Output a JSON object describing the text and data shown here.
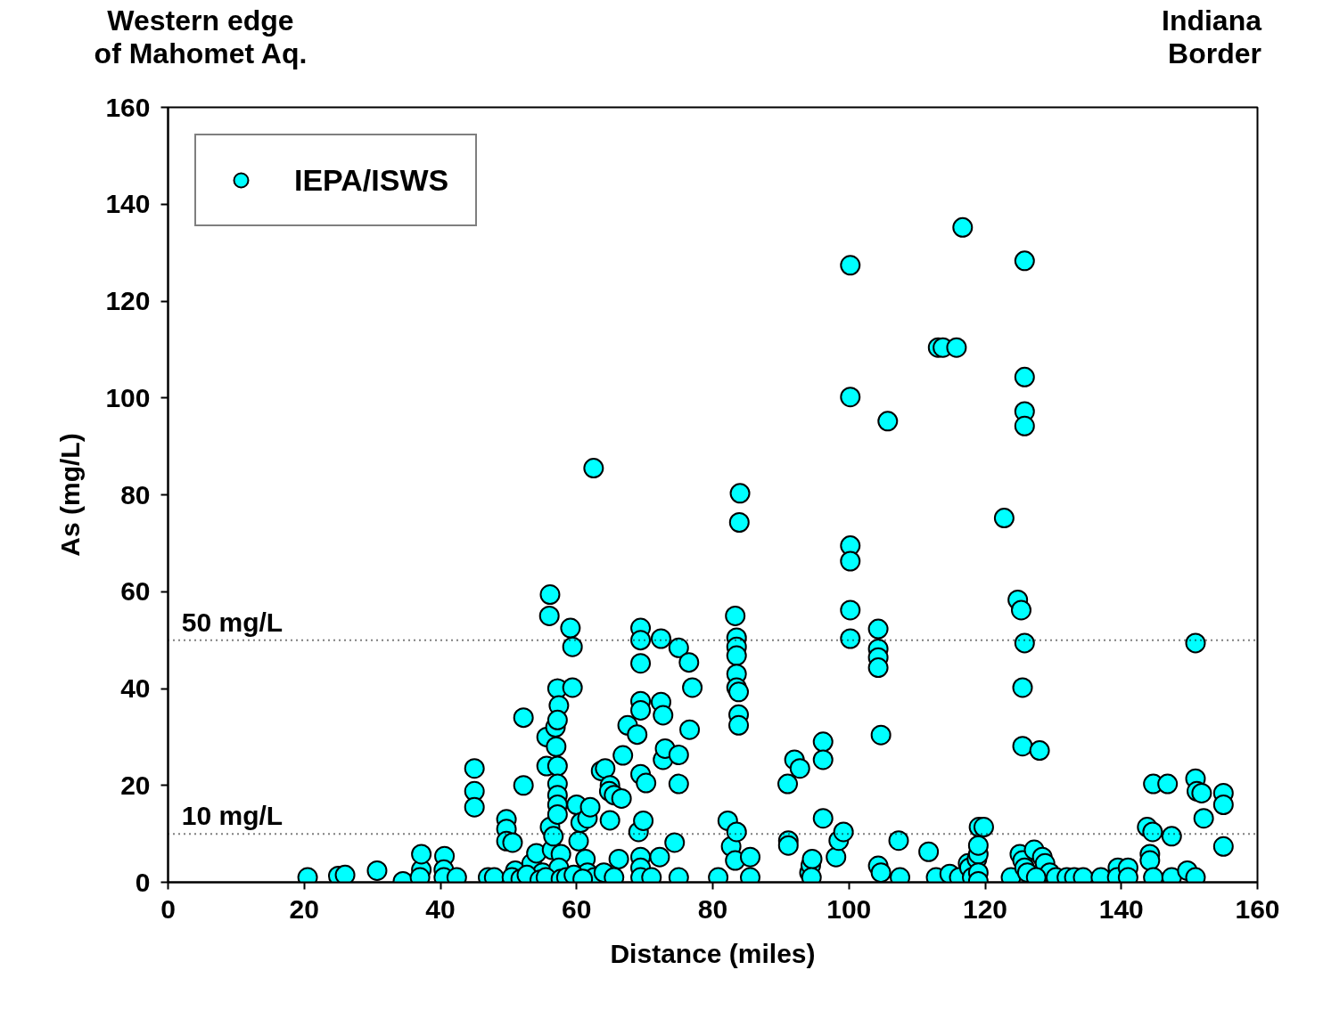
{
  "chart_data": {
    "type": "scatter",
    "xlabel": "Distance (miles)",
    "ylabel": "As (mg/L)",
    "xlim": [
      0,
      160
    ],
    "ylim": [
      0,
      160
    ],
    "xticks": [
      0,
      20,
      40,
      60,
      80,
      100,
      120,
      140,
      160
    ],
    "yticks": [
      0,
      20,
      40,
      60,
      80,
      100,
      120,
      140,
      160
    ],
    "grid": false,
    "legend": "top left",
    "marker": "circle",
    "annotations": [
      "Western edge\nof Mahomet Aq.",
      "Indiana\nBorder"
    ],
    "ref_lines": [
      {
        "axis": "y",
        "value": 50,
        "label": "50 mg/L",
        "line_style": "dotted",
        "color": "#000000"
      },
      {
        "axis": "y",
        "value": 10,
        "label": "10 mg/L",
        "line_style": "dotted",
        "color": "#000000"
      }
    ],
    "series": [
      {
        "name": "IEPA/ISWS",
        "color": "#00ffff",
        "x": [
          20.5,
          25,
          26,
          30.7,
          34.5,
          37.2,
          37.2,
          37,
          40.6,
          40.5,
          40.5,
          42.4,
          45,
          45,
          45,
          47,
          49.7,
          49.7,
          49.7,
          50.6,
          51,
          52.2,
          52.2,
          53.4,
          54.1,
          55,
          55.6,
          55.6,
          56,
          56.1,
          56.1,
          56.4,
          56.9,
          57.2,
          57.4,
          57.2,
          57,
          57.2,
          57.2,
          57.2,
          57.2,
          57.2,
          56.6,
          57.7,
          57.4,
          59.1,
          59.4,
          59.4,
          60,
          60.3,
          60.6,
          61.6,
          62,
          61.3,
          61.6,
          62.5,
          62.6,
          63.6,
          64.2,
          64.9,
          64.8,
          65.5,
          64.9,
          66.2,
          66.6,
          66.8,
          67.5,
          68.9,
          69.4,
          69.4,
          69.4,
          69.4,
          69.4,
          69.4,
          70.2,
          69.1,
          69.8,
          69.4,
          69.4,
          69.4,
          71,
          72.2,
          72.4,
          72.4,
          72.7,
          72.7,
          73,
          74.4,
          75,
          75,
          75,
          75,
          76.5,
          77,
          76.6,
          80.8,
          82.2,
          82.7,
          83.3,
          83.5,
          83.5,
          83.5,
          83.5,
          83.5,
          83.8,
          83.8,
          83.8,
          83.9,
          84,
          83.5,
          83.3,
          85.5,
          85.5,
          91,
          91.1,
          91.1,
          92,
          92.8,
          94.2,
          94.4,
          94.6,
          94.5,
          96.2,
          96.2,
          96.2,
          98.1,
          98.5,
          99.2,
          100.2,
          100.2,
          100.2,
          100.2,
          100.2,
          100.2,
          104.3,
          104.3,
          104.3,
          104.3,
          104.7,
          104.3,
          104.7,
          105.7,
          107.3,
          107.5,
          111.7,
          112.8,
          113.1,
          113.8,
          115.8,
          114.8,
          116.7,
          116.2,
          117.5,
          117.7,
          118.1,
          118.8,
          119,
          119,
          119.1,
          119.8,
          119,
          119,
          122.8,
          124.8,
          125.3,
          125.8,
          125.5,
          125.5,
          128,
          125.8,
          125.8,
          125.8,
          125.8,
          123.8,
          125.1,
          125.5,
          125.8,
          126.2,
          127.2,
          128.4,
          128.8,
          129.5,
          127.5,
          130.4,
          132,
          133.1,
          134.4,
          137,
          139.5,
          139.4,
          141,
          141,
          143.8,
          144.6,
          144.2,
          144.2,
          144.7,
          144.7,
          146.8,
          147.4,
          147.4,
          149.7,
          150.9,
          150.9,
          151.1,
          151.8,
          150.9,
          152.1,
          155,
          155,
          155,
          47.9,
          50.5,
          51.8,
          52.7,
          54.6,
          55.5,
          57.7,
          58.5,
          59.6,
          60.9,
          64,
          65.5
        ],
        "values": [
          1,
          1.3,
          1.5,
          2.4,
          0.2,
          2.6,
          5.8,
          1,
          5.4,
          2.6,
          1,
          1,
          23.5,
          18.8,
          15.5,
          1,
          13,
          11,
          8.5,
          8.2,
          2.4,
          20,
          34,
          3.9,
          6,
          2,
          30,
          24,
          55,
          59.4,
          11.4,
          6.7,
          32,
          40,
          36.5,
          33.5,
          28,
          24,
          20.3,
          18,
          16,
          14,
          9.5,
          5.8,
          3,
          52.5,
          48.6,
          40.2,
          16,
          8.5,
          12.3,
          13.2,
          15.5,
          4.8,
          2,
          85.5,
          1,
          23,
          23.5,
          20,
          18.8,
          18,
          12.8,
          4.8,
          17.3,
          26.2,
          32.4,
          30.5,
          37.4,
          35.5,
          45.2,
          52.5,
          50,
          22.3,
          20.5,
          10.4,
          12.7,
          5.2,
          3,
          1,
          1,
          5.2,
          50.3,
          37.2,
          34.5,
          25.3,
          27.6,
          8.2,
          48.4,
          26.3,
          20.3,
          1,
          45.4,
          40.2,
          31.5,
          1,
          12.7,
          7.4,
          55,
          50.5,
          48.6,
          46.8,
          43,
          40.2,
          39.3,
          34.6,
          32.4,
          74.3,
          80.3,
          10.4,
          4.5,
          5.2,
          1,
          20.3,
          8.6,
          7.6,
          25.3,
          23.5,
          2,
          3.5,
          4.8,
          1,
          29,
          25.3,
          13.2,
          5.2,
          8.6,
          10.4,
          127.4,
          100.2,
          69.5,
          66.3,
          56.2,
          50.3,
          52.3,
          48.2,
          46.4,
          44.3,
          30.4,
          3.4,
          2,
          95.2,
          8.6,
          1,
          6.3,
          1,
          110.4,
          110.4,
          110.4,
          1.7,
          135.2,
          1,
          3.9,
          3,
          1,
          4.8,
          5.8,
          7.6,
          11.4,
          11.4,
          2,
          0.2,
          75.2,
          58.3,
          56.2,
          49.4,
          40.2,
          28.1,
          27.2,
          128.3,
          104.3,
          97.2,
          94.2,
          1,
          5.8,
          4.5,
          3,
          2,
          6.7,
          5.2,
          3.9,
          2,
          1,
          1,
          1,
          1,
          1,
          1,
          3,
          1,
          3,
          1,
          11.4,
          10.4,
          5.8,
          4.5,
          1,
          20.3,
          20.3,
          9.5,
          1,
          2.4,
          49.4,
          21.4,
          18.8,
          18.4,
          1,
          13.2,
          18.4,
          16,
          7.4,
          1,
          1,
          0.7,
          1.5,
          0.5,
          1,
          0.7,
          1,
          1.5,
          0.7,
          2,
          1
        ]
      }
    ]
  }
}
